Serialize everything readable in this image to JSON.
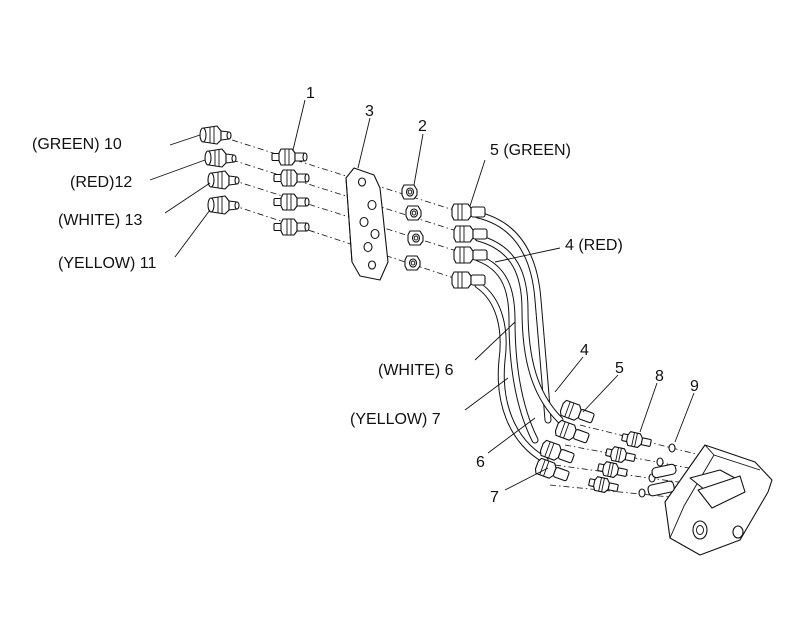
{
  "callouts": {
    "c1": "1",
    "c2": "2",
    "c3": "3",
    "c4_red": "4 (RED)",
    "c4": "4",
    "c5_green": "5 (GREEN)",
    "c5": "5",
    "c6_white": "(WHITE) 6",
    "c6": "6",
    "c7_yellow": "(YELLOW) 7",
    "c7": "7",
    "c8": "8",
    "c9": "9",
    "c10": "(GREEN) 10",
    "c11": "(YELLOW) 11",
    "c12": "(RED)12",
    "c13": "(WHITE) 13"
  }
}
